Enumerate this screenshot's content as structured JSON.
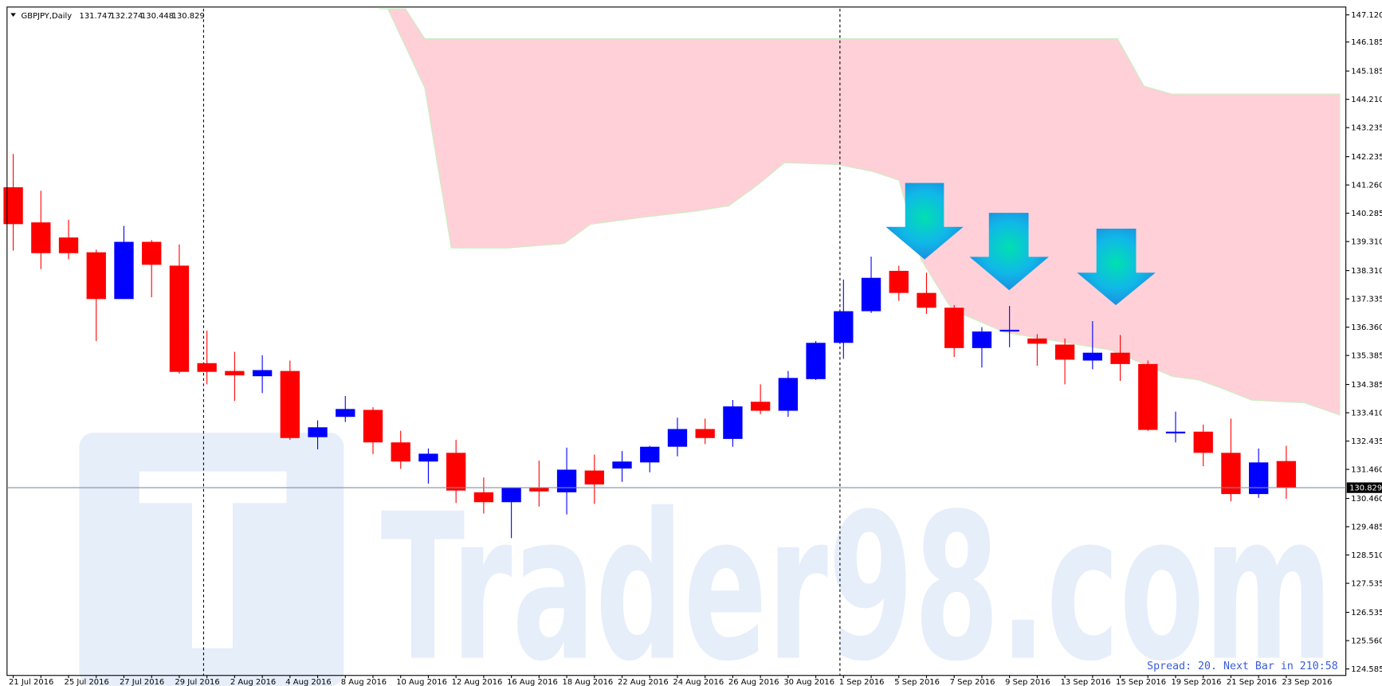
{
  "chart_data": {
    "type": "candlestick",
    "title": "GBPJPY,Daily",
    "ohlc": [
      131.747,
      132.274,
      130.448,
      130.829
    ],
    "status": "Spread: 20. Next Bar in 210:58",
    "watermark": "Trader98.com",
    "up_color": "#0000ff",
    "down_color": "#ff0000",
    "categories": [
      "21 Jul 2016",
      null,
      "25 Jul 2016",
      null,
      "27 Jul 2016",
      null,
      "29 Jul 2016",
      null,
      "2 Aug 2016",
      null,
      "4 Aug 2016",
      null,
      "8 Aug 2016",
      null,
      "10 Aug 2016",
      null,
      "12 Aug 2016",
      null,
      "16 Aug 2016",
      null,
      "18 Aug 2016",
      null,
      "22 Aug 2016",
      null,
      "24 Aug 2016",
      null,
      "26 Aug 2016",
      null,
      "30 Aug 2016",
      null,
      "1 Sep 2016",
      null,
      "5 Sep 2016",
      null,
      "7 Sep 2016",
      null,
      "9 Sep 2016",
      null,
      "13 Sep 2016",
      null,
      "15 Sep 2016",
      null,
      "19 Sep 2016",
      null,
      "21 Sep 2016",
      null,
      "23 Sep 2016"
    ],
    "open": [
      141.18,
      139.97,
      139.45,
      138.94,
      137.33,
      139.3,
      138.48,
      135.12,
      134.85,
      134.67,
      134.85,
      132.57,
      133.27,
      133.51,
      132.39,
      131.73,
      132.03,
      130.67,
      130.33,
      130.82,
      130.67,
      131.42,
      131.49,
      131.7,
      132.24,
      132.85,
      132.51,
      133.79,
      133.48,
      134.57,
      135.82,
      136.91,
      138.3,
      137.54,
      137.03,
      135.64,
      136.21,
      135.97,
      135.76,
      135.21,
      135.48,
      135.09,
      132.7,
      132.76,
      132.03,
      130.61,
      131.747
    ],
    "high": [
      142.33,
      141.06,
      140.06,
      139.03,
      139.85,
      139.36,
      139.21,
      136.24,
      135.51,
      135.39,
      135.21,
      133.15,
      133.99,
      133.6,
      132.79,
      132.18,
      132.48,
      131.18,
      130.82,
      131.76,
      132.21,
      131.97,
      132.09,
      132.27,
      133.24,
      133.21,
      133.85,
      134.39,
      134.85,
      135.88,
      138.0,
      138.79,
      138.48,
      138.24,
      137.12,
      136.36,
      137.09,
      136.12,
      135.97,
      136.57,
      136.09,
      135.21,
      133.45,
      133.0,
      133.21,
      132.18,
      132.274
    ],
    "low": [
      139.0,
      138.36,
      138.7,
      135.88,
      137.33,
      137.39,
      134.76,
      134.39,
      133.82,
      134.09,
      132.48,
      132.15,
      133.09,
      131.99,
      131.48,
      130.97,
      130.3,
      129.94,
      129.09,
      130.18,
      129.91,
      130.27,
      131.03,
      131.36,
      131.91,
      132.33,
      132.24,
      133.36,
      133.27,
      134.54,
      135.27,
      136.85,
      137.27,
      136.82,
      135.33,
      134.97,
      135.67,
      135.03,
      134.39,
      134.91,
      134.51,
      132.79,
      132.39,
      131.57,
      130.36,
      130.48,
      130.448
    ],
    "close": [
      139.91,
      138.91,
      138.91,
      137.33,
      139.3,
      138.51,
      134.82,
      134.82,
      134.7,
      134.88,
      132.54,
      132.91,
      133.54,
      132.39,
      131.73,
      132.0,
      130.73,
      130.33,
      130.82,
      130.7,
      131.45,
      130.94,
      131.73,
      132.24,
      132.85,
      132.54,
      133.63,
      133.48,
      134.61,
      135.82,
      136.91,
      138.06,
      137.54,
      137.03,
      135.64,
      136.21,
      136.27,
      135.79,
      135.24,
      135.48,
      135.09,
      132.82,
      132.76,
      132.03,
      130.61,
      131.7,
      130.829
    ],
    "ylim": [
      124.36,
      147.39
    ],
    "yticks": [
      {
        "value": 147.12,
        "label": "147.120"
      },
      146.185,
      145.185,
      {
        "value": 144.21,
        "label": "144.210"
      },
      143.235,
      142.235,
      {
        "value": 141.26,
        "label": "141.260"
      },
      140.285,
      {
        "value": 139.31,
        "label": "139.310"
      },
      {
        "value": 138.31,
        "label": "138.310"
      },
      137.335,
      {
        "value": 136.36,
        "label": "136.360"
      },
      135.385,
      134.385,
      {
        "value": 133.41,
        "label": "133.410"
      },
      132.435,
      {
        "value": 131.46,
        "label": "131.460"
      },
      {
        "value": 130.46,
        "label": "130.460"
      },
      129.485,
      {
        "value": 128.51,
        "label": "128.510"
      },
      127.535,
      126.535,
      {
        "value": 125.56,
        "label": "125.560"
      },
      124.585
    ]
  }
}
